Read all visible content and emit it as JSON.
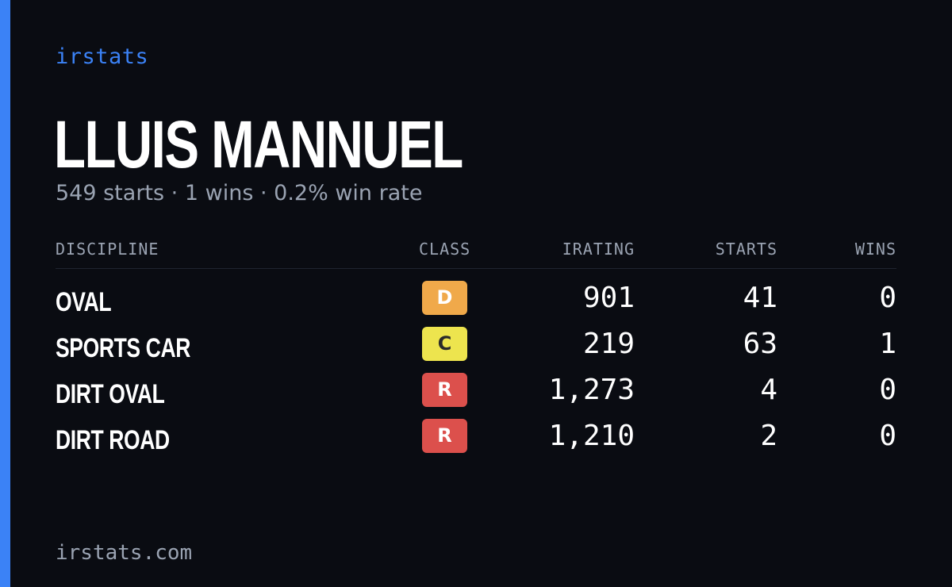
{
  "brand": "irstats",
  "driver": {
    "name": "LLUIS MANNUEL",
    "starts_text": "549 starts",
    "wins_text": "1 wins",
    "win_rate_text": "0.2% win rate",
    "separator": "·"
  },
  "table": {
    "headers": {
      "discipline": "DISCIPLINE",
      "class": "CLASS",
      "irating": "IRATING",
      "starts": "STARTS",
      "wins": "WINS"
    },
    "rows": [
      {
        "discipline": "OVAL",
        "class": "D",
        "class_color": "#f0a94a",
        "class_text_color": "#ffffff",
        "irating": "901",
        "starts": "41",
        "wins": "0"
      },
      {
        "discipline": "SPORTS CAR",
        "class": "C",
        "class_color": "#ede44e",
        "class_text_color": "#2a2a2a",
        "irating": "219",
        "starts": "63",
        "wins": "1"
      },
      {
        "discipline": "DIRT OVAL",
        "class": "R",
        "class_color": "#dc504c",
        "class_text_color": "#ffffff",
        "irating": "1,273",
        "starts": "4",
        "wins": "0"
      },
      {
        "discipline": "DIRT ROAD",
        "class": "R",
        "class_color": "#dc504c",
        "class_text_color": "#ffffff",
        "irating": "1,210",
        "starts": "2",
        "wins": "0"
      }
    ]
  },
  "footer": "irstats.com",
  "colors": {
    "background": "#0a0c12",
    "accent": "#3b82f6",
    "muted_text": "#9aa3b2"
  }
}
